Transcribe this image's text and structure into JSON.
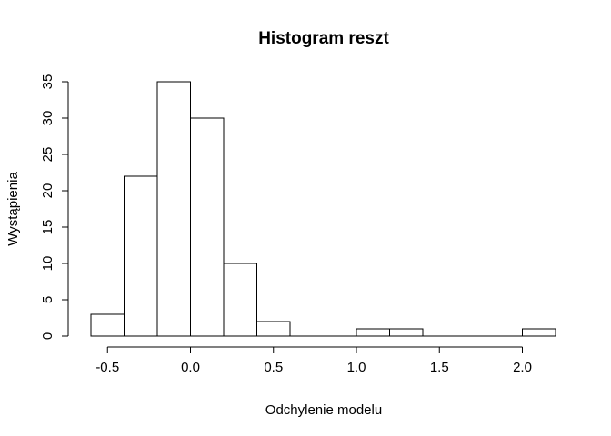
{
  "chart_data": {
    "type": "bar",
    "title": "Histogram reszt",
    "xlabel": "Odchylenie modelu",
    "ylabel": "Wystąpienia",
    "bins": [
      {
        "start": -0.6,
        "end": -0.4,
        "count": 3
      },
      {
        "start": -0.4,
        "end": -0.2,
        "count": 22
      },
      {
        "start": -0.2,
        "end": 0.0,
        "count": 35
      },
      {
        "start": 0.0,
        "end": 0.2,
        "count": 30
      },
      {
        "start": 0.2,
        "end": 0.4,
        "count": 10
      },
      {
        "start": 0.4,
        "end": 0.6,
        "count": 2
      },
      {
        "start": 0.6,
        "end": 0.8,
        "count": 0
      },
      {
        "start": 0.8,
        "end": 1.0,
        "count": 0
      },
      {
        "start": 1.0,
        "end": 1.2,
        "count": 1
      },
      {
        "start": 1.2,
        "end": 1.4,
        "count": 1
      },
      {
        "start": 1.4,
        "end": 1.6,
        "count": 0
      },
      {
        "start": 1.6,
        "end": 1.8,
        "count": 0
      },
      {
        "start": 1.8,
        "end": 2.0,
        "count": 0
      },
      {
        "start": 2.0,
        "end": 2.2,
        "count": 1
      }
    ],
    "xticks": [
      -0.5,
      0.0,
      0.5,
      1.0,
      1.5,
      2.0
    ],
    "xtick_labels": [
      "-0.5",
      "0.0",
      "0.5",
      "1.0",
      "1.5",
      "2.0"
    ],
    "yticks": [
      0,
      5,
      10,
      15,
      20,
      25,
      30,
      35
    ],
    "ytick_labels": [
      "0",
      "5",
      "10",
      "15",
      "20",
      "25",
      "30",
      "35"
    ],
    "xlim": [
      -0.6,
      2.2
    ],
    "ylim": [
      0,
      35
    ],
    "grid": false,
    "colors": {
      "bar_fill": "#ffffff",
      "bar_stroke": "#000000"
    }
  }
}
